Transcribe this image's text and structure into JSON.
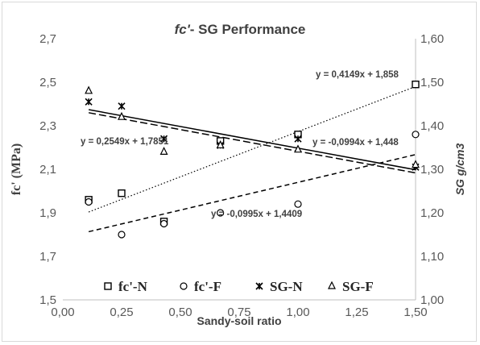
{
  "chart_data": {
    "type": "scatter",
    "title": "fc'- SG Performance",
    "title_italic_part": "fc'",
    "title_rest": "- SG Performance",
    "xlabel": "Sandy-soil ratio",
    "ylabel_left": "fc' (MPa)",
    "ylabel_right": "SG g/cm3",
    "xlim": [
      0.0,
      1.5
    ],
    "ylim_left": [
      1.5,
      2.7
    ],
    "ylim_right": [
      1.0,
      1.6
    ],
    "x_ticks": [
      "0,00",
      "0,25",
      "0,50",
      "0,75",
      "1,00",
      "1,25",
      "1,50"
    ],
    "y_left_ticks": [
      "1,5",
      "1,7",
      "1,9",
      "2,1",
      "2,3",
      "2,5",
      "2,7"
    ],
    "y_right_ticks": [
      "1,00",
      "1,10",
      "1,20",
      "1,30",
      "1,40",
      "1,50",
      "1,60"
    ],
    "grid": false,
    "legend_position": "bottom",
    "series": [
      {
        "name": "fc'-N",
        "axis": "left",
        "marker": "square",
        "x": [
          0.11,
          0.25,
          0.43,
          0.67,
          1.0,
          1.5
        ],
        "y": [
          1.96,
          1.99,
          1.86,
          2.23,
          2.26,
          2.49
        ],
        "trend": {
          "label": "y = 0,4149x + 1,858",
          "style": "dotted",
          "slope": 0.4149,
          "intercept": 1.858,
          "x_range": [
            0.11,
            1.5
          ]
        }
      },
      {
        "name": "fc'-F",
        "axis": "left",
        "marker": "circle",
        "x": [
          0.11,
          0.25,
          0.43,
          0.67,
          1.0,
          1.5
        ],
        "y": [
          1.95,
          1.8,
          1.85,
          1.9,
          1.94,
          2.26
        ],
        "trend": {
          "label": "y = 0,2549x + 1,7851",
          "style": "dashed",
          "slope": 0.2549,
          "intercept": 1.7851,
          "x_range": [
            0.11,
            1.5
          ]
        }
      },
      {
        "name": "SG-N",
        "axis": "right",
        "marker": "star",
        "x": [
          0.11,
          0.25,
          0.43,
          0.67,
          1.0,
          1.5
        ],
        "y": [
          1.455,
          1.445,
          1.37,
          1.355,
          1.37,
          1.305
        ],
        "trend": {
          "label": "y = -0,0994x + 1,448",
          "style": "solid",
          "slope": -0.0994,
          "intercept": 1.448,
          "x_range": [
            0.11,
            1.5
          ]
        }
      },
      {
        "name": "SG-F",
        "axis": "right",
        "marker": "triangle",
        "x": [
          0.11,
          0.25,
          0.43,
          0.67,
          1.0,
          1.5
        ],
        "y": [
          1.48,
          1.42,
          1.34,
          1.355,
          1.345,
          1.31
        ],
        "trend": {
          "label": "y = -0,0995x + 1,4409",
          "style": "longdash",
          "slope": -0.0995,
          "intercept": 1.4409,
          "x_range": [
            0.11,
            1.5
          ]
        }
      }
    ],
    "colors": {
      "marker": "#000000",
      "text": "#404040",
      "tick_text": "#595959",
      "axis": "#bfbfbf"
    }
  }
}
